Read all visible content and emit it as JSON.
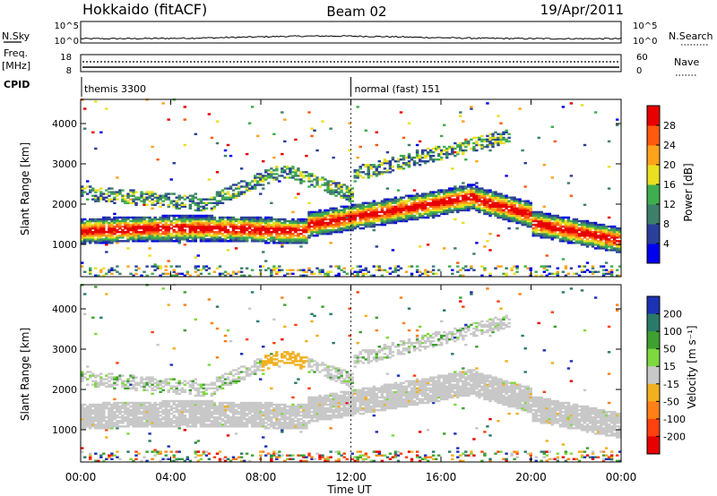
{
  "header": {
    "station": "Hokkaido (fitACF)",
    "beam": "Beam 02",
    "date": "19/Apr/2011"
  },
  "strips": {
    "nsky_label": "N.Sky",
    "nsky_top": "10^5",
    "nsky_bottom": "10^0",
    "nsearch_label": "N.Search",
    "nsearch_top": "10^5",
    "nsearch_bottom": "10^0",
    "freq_label_1": "Freq.",
    "freq_label_2": "[MHz]",
    "freq_top": "18",
    "freq_bottom": "8",
    "nave_label": "Nave",
    "nave_top": "60",
    "nave_bottom": "0",
    "cpid_label": "CPID",
    "cpid_modes": [
      {
        "text": "themis 3300",
        "start_hour": 0
      },
      {
        "text": "normal (fast) 151",
        "start_hour": 12
      }
    ]
  },
  "chart_data": [
    {
      "type": "heatmap",
      "title": "",
      "xlabel": "Time UT",
      "ylabel": "Slant Range [km]",
      "x_range_hours": [
        0,
        24
      ],
      "xticks": [
        "00:00",
        "04:00",
        "08:00",
        "12:00",
        "16:00",
        "20:00",
        "00:00"
      ],
      "ylim": [
        200,
        4600
      ],
      "yticks": [
        1000,
        2000,
        3000,
        4000
      ],
      "colorbar": {
        "label": "Power [dB]",
        "ticks": [
          4,
          8,
          12,
          16,
          20,
          24,
          28
        ],
        "colors": [
          "#0000ee",
          "#2a3f9a",
          "#3e7f6a",
          "#3fae4f",
          "#e8e020",
          "#ffa21c",
          "#ff5a10",
          "#e80000"
        ]
      }
    },
    {
      "type": "heatmap",
      "title": "",
      "xlabel": "Time UT",
      "ylabel": "Slant Range [km]",
      "x_range_hours": [
        0,
        24
      ],
      "xticks": [
        "00:00",
        "04:00",
        "08:00",
        "12:00",
        "16:00",
        "20:00",
        "00:00"
      ],
      "ylim": [
        200,
        4600
      ],
      "yticks": [
        1000,
        2000,
        3000,
        4000
      ],
      "colorbar": {
        "label": "Velocity [m s⁻¹]",
        "ticks": [
          200,
          100,
          50,
          15,
          -15,
          -50,
          -100,
          -200
        ],
        "colors": [
          "#1c32b4",
          "#2a7a6a",
          "#3ea030",
          "#7ed840",
          "#c8c8c8",
          "#f0b020",
          "#ff8018",
          "#ff4010",
          "#e80000"
        ]
      }
    }
  ]
}
